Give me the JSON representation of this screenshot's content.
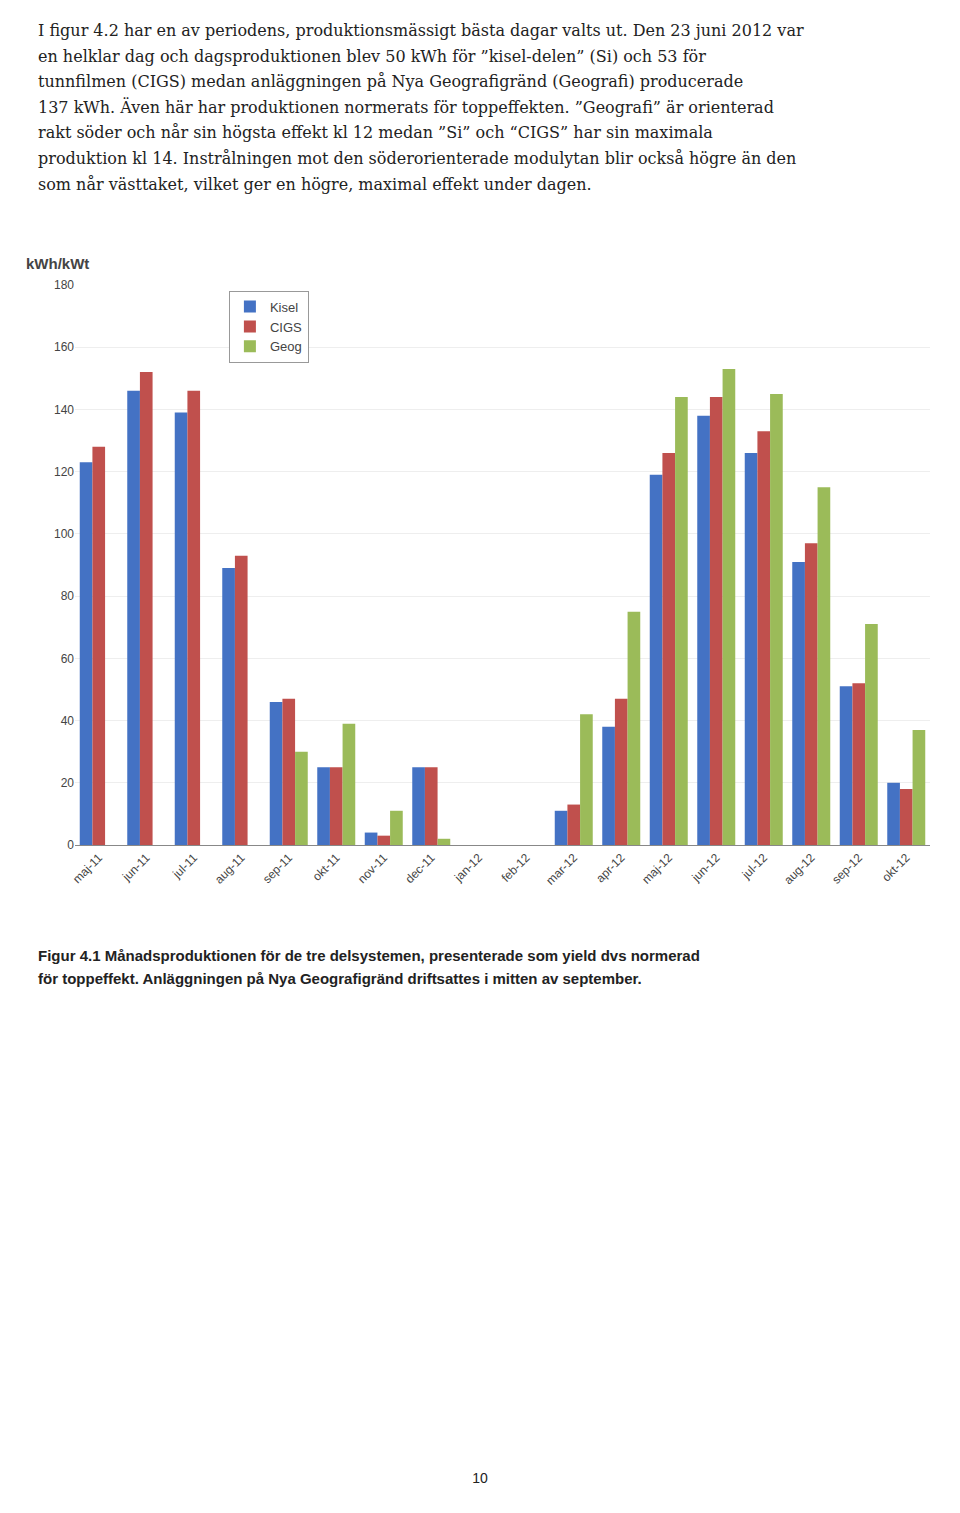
{
  "chart_data": {
    "type": "bar",
    "categories": [
      "maj-11",
      "jun-11",
      "jul-11",
      "aug-11",
      "sep-11",
      "okt-11",
      "nov-11",
      "dec-11",
      "jan-12",
      "feb-12",
      "mar-12",
      "apr-12",
      "maj-12",
      "jun-12",
      "jul-12",
      "aug-12",
      "sep-12",
      "okt-12"
    ],
    "series": [
      {
        "name": "Kisel",
        "color": "#4472C4",
        "values": [
          123,
          146,
          139,
          89,
          46,
          25,
          4,
          25,
          0,
          0,
          11,
          38,
          119,
          138,
          126,
          91,
          51,
          20
        ]
      },
      {
        "name": "CIGS",
        "color": "#C0504D",
        "values": [
          128,
          152,
          146,
          93,
          47,
          25,
          3,
          25,
          0,
          0,
          13,
          47,
          126,
          144,
          133,
          97,
          52,
          18
        ]
      },
      {
        "name": "Geog",
        "color": "#9BBB59",
        "values": [
          0,
          0,
          0,
          0,
          30,
          39,
          11,
          2,
          0,
          0,
          42,
          75,
          144,
          153,
          145,
          115,
          71,
          37
        ]
      }
    ],
    "ylabel": "kWh/kWt",
    "ylim": [
      0,
      180
    ],
    "yticks": [
      0,
      20,
      40,
      60,
      80,
      100,
      120,
      140,
      160,
      180
    ],
    "grid": true,
    "legend": "upper left",
    "annotations": [
      "I figur 4.2 har en av periodens, produktionsmässigt bästa dagar valts ut. Den 23 juni 2012 var\nen helklar dag och dagsproduktionen blev 50 kWh för ”kisel-delen” (Si) och 53 för\ntunnfilmen (CIGS) medan anläggningen på Nya Geografigränd (Geografi) producerade\n137 kWh. Även här har produktionen normerats för toppeffekten. ”Geografi” är orienterad\nrakt söder och når sin högsta effekt kl 12 medan ”Si” och “CIGS” har sin maximala\nproduktion kl 14. Instrålningen mot den söderorienterade modulytan blir också högre än den\nsom når västtaket, vilket ger en högre, maximal effekt under dagen.",
      "Figur 4.1  Månadsproduktionen för de tre delsystemen, presenterade som yield dvs normerad\nför toppeffekt. Anläggningen på Nya Geografigränd driftsattes i mitten av september.",
      "10"
    ]
  }
}
